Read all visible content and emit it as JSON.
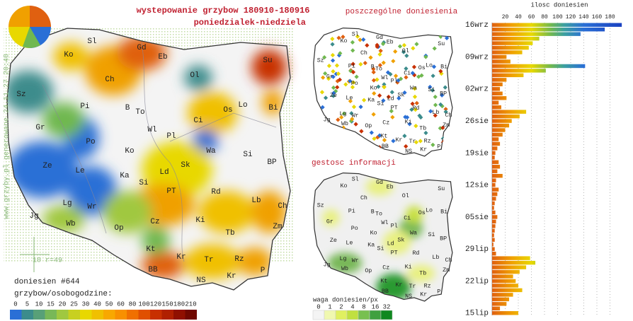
{
  "header": {
    "title": "wystepowanie grzybow 180910-180916",
    "subtitle": "poniedzialek-niedziela"
  },
  "main_map": {
    "labels": [
      "Sl",
      "Gd",
      "Eb",
      "Ko",
      "Su",
      "Ol",
      "Ch",
      "Sz",
      "Pi",
      "B",
      "To",
      "Wl",
      "Os",
      "Lo",
      "Bi",
      "Ci",
      "Gr",
      "Pl",
      "Po",
      "Ko",
      "Wa",
      "Si",
      "Ze",
      "Le",
      "Ld",
      "Sk",
      "BP",
      "Ka",
      "Si",
      "Lg",
      "Wr",
      "PT",
      "Rd",
      "Lb",
      "Ch",
      "Jg",
      "Wb",
      "Op",
      "Cz",
      "Ki",
      "Zm",
      "Tb",
      "Kt",
      "Kr",
      "Tr",
      "Rz",
      "BB",
      "NS",
      "Kr",
      "P"
    ],
    "reports": "doniesien #644",
    "scale_title": "grzybow/osobogodzine:",
    "scale": [
      "0",
      "5",
      "10",
      "15",
      "20",
      "25",
      "30",
      "40",
      "50",
      "60",
      "80",
      "100",
      "120",
      "150",
      "180",
      "210"
    ],
    "scale_note": "10 r=49",
    "footer": "www.grzyby.pl generowane 24.11.27 20:40"
  },
  "reports_map": {
    "title": "poszczególne doniesienia"
  },
  "density_map": {
    "title": "gestosc informacji",
    "scale_title": "waga doniesien/px",
    "scale": [
      "0",
      "1",
      "2",
      "4",
      "8",
      "16",
      "32"
    ]
  },
  "chart_data": {
    "type": "bar",
    "orientation": "horizontal",
    "title": "ilosc doniesien",
    "categories": [
      "16wrz",
      null,
      null,
      null,
      null,
      null,
      null,
      "09wrz",
      null,
      null,
      null,
      null,
      null,
      null,
      "02wrz",
      null,
      null,
      null,
      null,
      null,
      null,
      "26sie",
      null,
      null,
      null,
      null,
      null,
      null,
      "19sie",
      null,
      null,
      null,
      null,
      null,
      null,
      "12sie",
      null,
      null,
      null,
      null,
      null,
      null,
      "05sie",
      null,
      null,
      null,
      null,
      null,
      null,
      "29lip",
      null,
      null,
      null,
      null,
      null,
      null,
      "22lip",
      null,
      null,
      null,
      null,
      null,
      null,
      "15lip"
    ],
    "values": [
      198,
      172,
      135,
      72,
      62,
      56,
      46,
      22,
      28,
      142,
      82,
      48,
      22,
      16,
      12,
      16,
      22,
      10,
      14,
      52,
      42,
      30,
      26,
      20,
      16,
      10,
      12,
      8,
      5,
      4,
      10,
      12,
      8,
      16,
      6,
      5,
      10,
      8,
      6,
      4,
      3,
      5,
      8,
      6,
      5,
      4,
      3,
      4,
      2,
      4,
      6,
      58,
      66,
      52,
      42,
      32,
      36,
      40,
      46,
      32,
      26,
      22,
      12,
      40
    ],
    "xlim": [
      0,
      200
    ],
    "xticks": [
      20,
      40,
      60,
      80,
      100,
      120,
      140,
      160,
      180
    ],
    "grid": true
  }
}
